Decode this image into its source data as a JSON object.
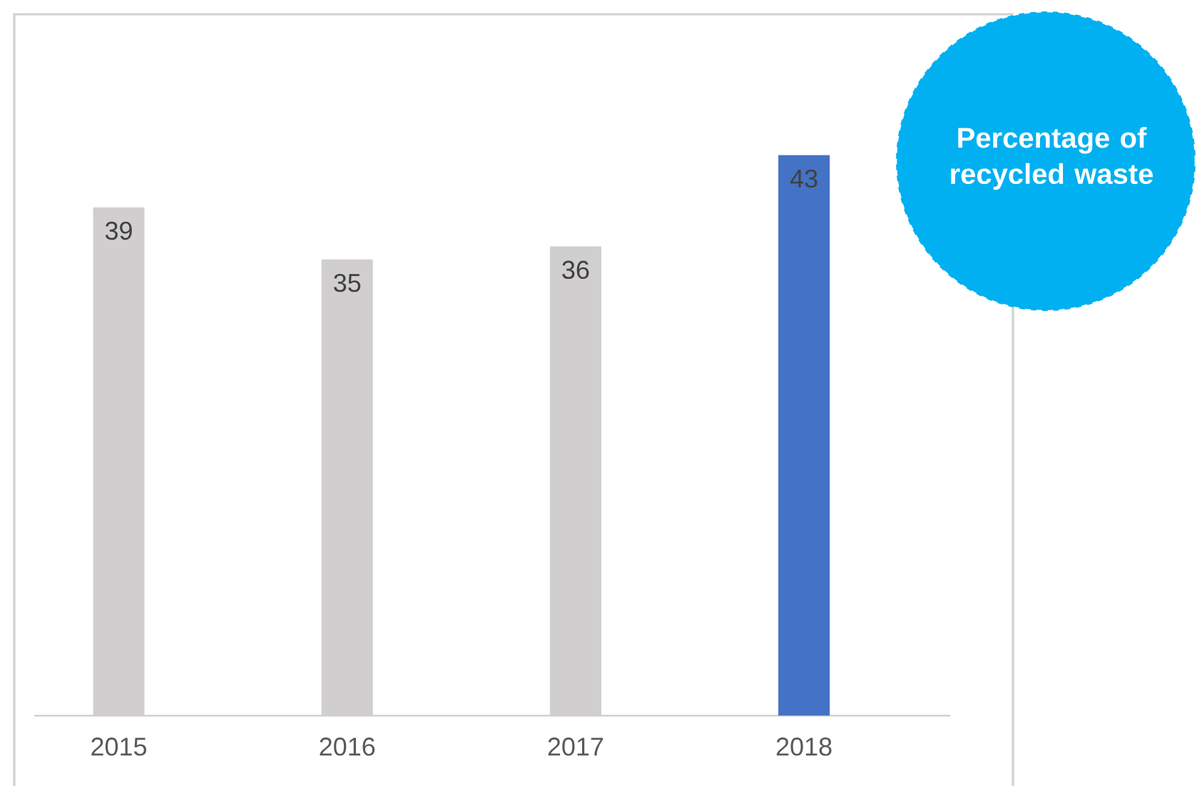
{
  "chart_data": {
    "type": "bar",
    "title": "Percentage of recycled waste",
    "categories": [
      "2015",
      "2016",
      "2017",
      "2018"
    ],
    "values": [
      39,
      35,
      36,
      43
    ],
    "colors": [
      "#d0cece",
      "#d0cece",
      "#d0cece",
      "#4472c4"
    ],
    "data_labels": true
  }
}
